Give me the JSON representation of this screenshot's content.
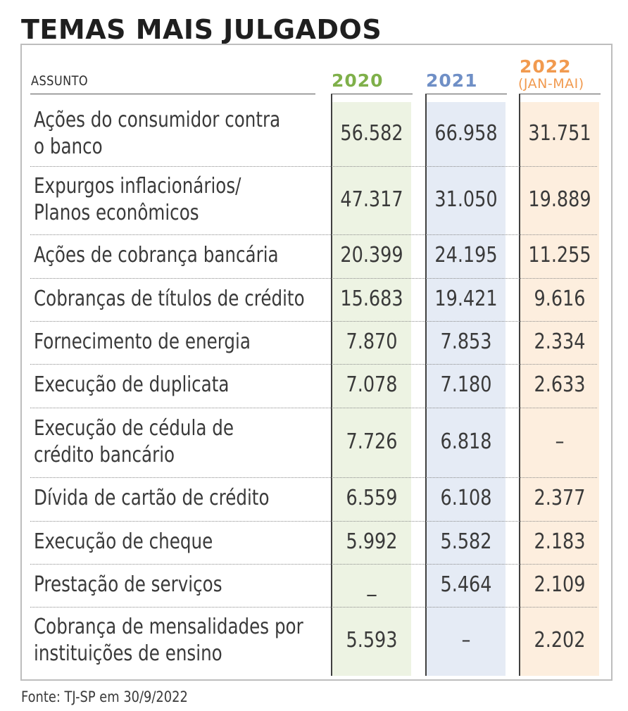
{
  "title": "TEMAS MAIS JULGADOS",
  "header": {
    "assunto": "ASSUNTO",
    "col_2020": "2020",
    "col_2021": "2021",
    "col_2022": "2022",
    "col_2022_sub": "(JAN-MAI)"
  },
  "colors": {
    "y2020_text": "#7fb04a",
    "y2020_bg": "#edf3e3",
    "y2021_text": "#6f8fc6",
    "y2021_bg": "#e5ebf5",
    "y2022_text": "#f19a4f",
    "y2022_bg": "#fdeede"
  },
  "rows": [
    {
      "label_lines": [
        "Ações do consumidor contra",
        "o banco"
      ],
      "v2020": "56.582",
      "v2021": "66.958",
      "v2022": "31.751"
    },
    {
      "label_lines": [
        "Expurgos inflacionários/",
        "Planos econômicos"
      ],
      "v2020": "47.317",
      "v2021": "31.050",
      "v2022": "19.889"
    },
    {
      "label_lines": [
        "Ações de cobrança bancária"
      ],
      "v2020": "20.399",
      "v2021": "24.195",
      "v2022": "11.255"
    },
    {
      "label_lines": [
        "Cobranças de títulos de crédito"
      ],
      "v2020": "15.683",
      "v2021": "19.421",
      "v2022": "9.616"
    },
    {
      "label_lines": [
        "Fornecimento de energia"
      ],
      "v2020": "7.870",
      "v2021": "7.853",
      "v2022": "2.334"
    },
    {
      "label_lines": [
        "Execução de duplicata"
      ],
      "v2020": "7.078",
      "v2021": "7.180",
      "v2022": "2.633"
    },
    {
      "label_lines": [
        "Execução de cédula de",
        "crédito bancário"
      ],
      "v2020": "7.726",
      "v2021": "6.818",
      "v2022": "–"
    },
    {
      "label_lines": [
        "Dívida de cartão de crédito"
      ],
      "v2020": "6.559",
      "v2021": "6.108",
      "v2022": "2.377"
    },
    {
      "label_lines": [
        "Execução de cheque"
      ],
      "v2020": "5.992",
      "v2021": "5.582",
      "v2022": "2.183"
    },
    {
      "label_lines": [
        "Prestação de serviços"
      ],
      "v2020": "_",
      "v2021": "5.464",
      "v2022": "2.109"
    },
    {
      "label_lines": [
        "Cobrança de mensalidades por",
        "instituições de ensino"
      ],
      "v2020": "5.593",
      "v2021": "–",
      "v2022": "2.202"
    }
  ],
  "chart_data": {
    "type": "table",
    "title": "TEMAS MAIS JULGADOS",
    "columns": [
      "ASSUNTO",
      "2020",
      "2021",
      "2022 (JAN-MAI)"
    ],
    "rows": [
      [
        "Ações do consumidor contra o banco",
        "56.582",
        "66.958",
        "31.751"
      ],
      [
        "Expurgos inflacionários/ Planos econômicos",
        "47.317",
        "31.050",
        "19.889"
      ],
      [
        "Ações de cobrança bancária",
        "20.399",
        "24.195",
        "11.255"
      ],
      [
        "Cobranças de títulos de crédito",
        "15.683",
        "19.421",
        "9.616"
      ],
      [
        "Fornecimento de energia",
        "7.870",
        "7.853",
        "2.334"
      ],
      [
        "Execução de duplicata",
        "7.078",
        "7.180",
        "2.633"
      ],
      [
        "Execução de cédula de crédito bancário",
        "7.726",
        "6.818",
        "–"
      ],
      [
        "Dívida de cartão de crédito",
        "6.559",
        "6.108",
        "2.377"
      ],
      [
        "Execução de cheque",
        "5.992",
        "5.582",
        "2.183"
      ],
      [
        "Prestação de serviços",
        "_",
        "5.464",
        "2.109"
      ],
      [
        "Cobrança de mensalidades por instituições de ensino",
        "5.593",
        "–",
        "2.202"
      ]
    ]
  },
  "source": "Fonte: TJ-SP em 30/9/2022"
}
